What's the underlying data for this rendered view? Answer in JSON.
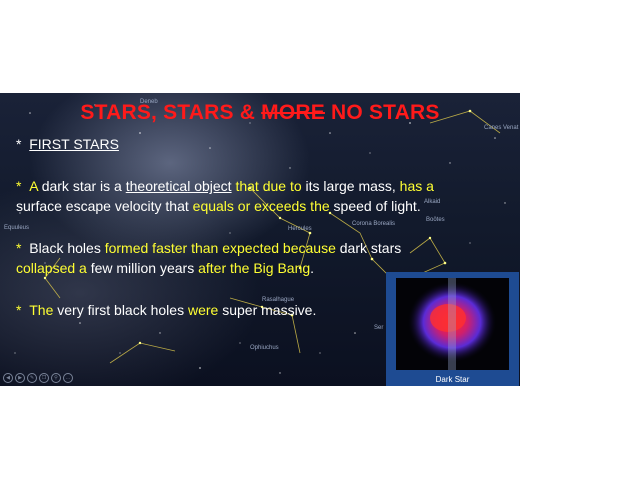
{
  "slide": {
    "title_parts": [
      "STARS, STARS & ",
      "MORE",
      " NO STARS"
    ],
    "constellations": [
      "Deneb",
      "Canes Venat",
      "Hercules",
      "Equuleus",
      "Corona Borealis",
      "Alkaid",
      "Boötes",
      "Rasalhague",
      "Ophiuchus",
      "Ser"
    ],
    "heading": {
      "bullet": "*",
      "text": "FIRST STARS"
    },
    "p1": {
      "bullet": "*",
      "s1": "A",
      "s2": " dark star is a ",
      "s3": "theoretical object",
      "s4": " that due to",
      "s5": " its large mass, ",
      "s6": "has a",
      "s7": "surface escape velocity that ",
      "s8": "equals or exceeds the",
      "s9": " speed of light."
    },
    "p2": {
      "bullet": "*",
      "s1": " Black holes ",
      "s2": "formed faster than expected because",
      "s3": " dark stars",
      "s4": "collapsed a",
      "s5": " few million years ",
      "s6": "after the Big Bang",
      "s7": "."
    },
    "p3": {
      "bullet": "*",
      "s1": "The",
      "s2": " very first black holes ",
      "s3": "were",
      "s4": " super massive."
    },
    "toolbar_icons": [
      "back-icon",
      "forward-icon",
      "pen-icon",
      "copy-icon",
      "search-icon",
      "more-icon"
    ]
  },
  "panel": {
    "label": "Dark Star"
  },
  "colors": {
    "title": "#ff1a1a",
    "highlight": "#ffff33",
    "panel_border": "#1e4b92"
  }
}
